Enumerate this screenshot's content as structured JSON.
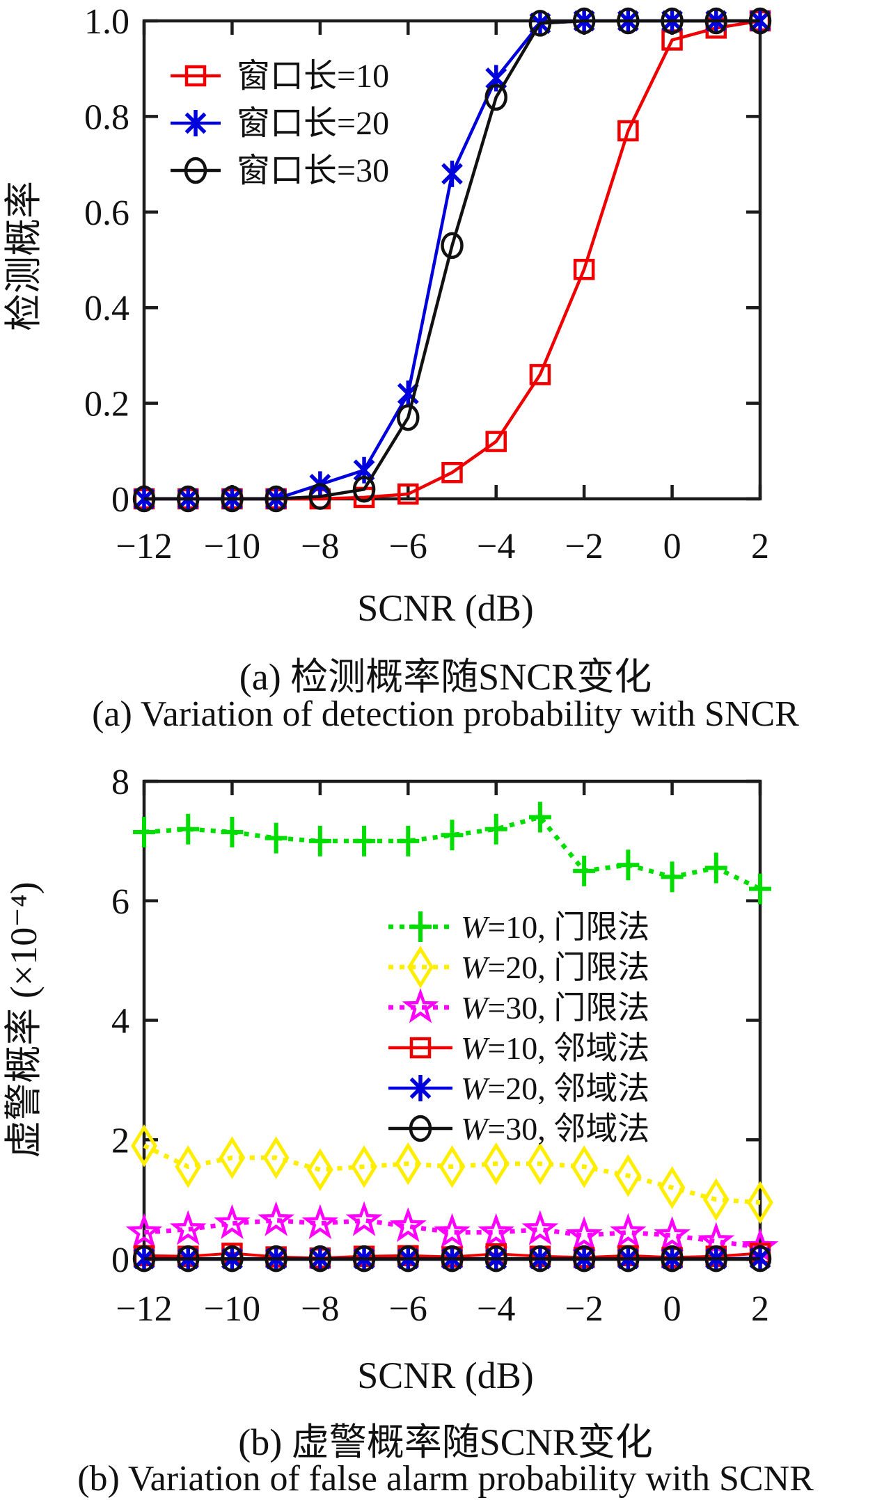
{
  "chart_data": [
    {
      "type": "line",
      "panel": "a",
      "xlabel": "SCNR (dB)",
      "ylabel": "检测概率",
      "caption_zh": "(a) 检测概率随SNCR变化",
      "caption_en": "(a) Variation of detection probability with SNCR",
      "xlim": [
        -12,
        2
      ],
      "ylim": [
        0,
        1
      ],
      "grid": false,
      "legend_position": "top-left",
      "x": [
        -12,
        -11,
        -10,
        -9,
        -8,
        -7,
        -6,
        -5,
        -4,
        -3,
        -2,
        -1,
        0,
        1,
        2
      ],
      "xticks": {
        "values": [
          -12,
          -10,
          -8,
          -6,
          -4,
          -2,
          0,
          2
        ],
        "labels": [
          "−12",
          "−10",
          "−8",
          "−6",
          "−4",
          "−2",
          "0",
          "2"
        ]
      },
      "yticks": {
        "values": [
          0,
          0.2,
          0.4,
          0.6,
          0.8,
          1.0
        ],
        "labels": [
          "0",
          "0.2",
          "0.4",
          "0.6",
          "0.8",
          "1.0"
        ]
      },
      "series": [
        {
          "name": "窗口长=10",
          "color": "#ee0000",
          "marker": "square",
          "line": "solid",
          "values": [
            0,
            0,
            0,
            0,
            0,
            0.003,
            0.01,
            0.055,
            0.12,
            0.26,
            0.48,
            0.77,
            0.96,
            0.985,
            1.0
          ]
        },
        {
          "name": "窗口长=20",
          "color": "#0000dd",
          "marker": "asterisk",
          "line": "solid",
          "values": [
            0,
            0,
            0,
            0,
            0.03,
            0.06,
            0.22,
            0.68,
            0.88,
            0.995,
            1.0,
            1.0,
            1.0,
            1.0,
            1.0
          ]
        },
        {
          "name": "窗口长=30",
          "color": "#111111",
          "marker": "circle",
          "line": "solid",
          "values": [
            0,
            0,
            0,
            0,
            0.005,
            0.02,
            0.17,
            0.53,
            0.84,
            0.995,
            1.0,
            1.0,
            1.0,
            1.0,
            1.0
          ]
        }
      ]
    },
    {
      "type": "line",
      "panel": "b",
      "xlabel": "SCNR (dB)",
      "ylabel": "虚警概率 (×10⁻⁴)",
      "caption_zh": "(b) 虚警概率随SCNR变化",
      "caption_en": "(b) Variation of false alarm probability with SCNR",
      "xlim": [
        -12,
        2
      ],
      "ylim": [
        0,
        8
      ],
      "grid": false,
      "legend_position": "middle-right",
      "x": [
        -12,
        -11,
        -10,
        -9,
        -8,
        -7,
        -6,
        -5,
        -4,
        -3,
        -2,
        -1,
        0,
        1,
        2
      ],
      "xticks": {
        "values": [
          -12,
          -10,
          -8,
          -6,
          -4,
          -2,
          0,
          2
        ],
        "labels": [
          "−12",
          "−10",
          "−8",
          "−6",
          "−4",
          "−2",
          "0",
          "2"
        ]
      },
      "yticks": {
        "values": [
          0,
          2,
          4,
          6,
          8
        ],
        "labels": [
          "0",
          "2",
          "4",
          "6",
          "8"
        ]
      },
      "series": [
        {
          "name": "W=10, 门限法",
          "color": "#00dd00",
          "marker": "plus",
          "line": "dotted",
          "values": [
            7.15,
            7.2,
            7.15,
            7.05,
            7.0,
            7.0,
            7.0,
            7.1,
            7.2,
            7.4,
            6.5,
            6.6,
            6.4,
            6.55,
            6.2
          ]
        },
        {
          "name": "W=20, 门限法",
          "color": "#ffee00",
          "marker": "diamond",
          "line": "dotted",
          "values": [
            1.9,
            1.55,
            1.7,
            1.7,
            1.5,
            1.55,
            1.6,
            1.55,
            1.6,
            1.6,
            1.55,
            1.4,
            1.2,
            1.0,
            0.95
          ]
        },
        {
          "name": "W=30, 门限法",
          "color": "#ff00ff",
          "marker": "star",
          "line": "dotted",
          "values": [
            0.45,
            0.5,
            0.6,
            0.65,
            0.6,
            0.65,
            0.55,
            0.45,
            0.45,
            0.5,
            0.4,
            0.45,
            0.4,
            0.3,
            0.2
          ]
        },
        {
          "name": "W=10, 邻域法",
          "color": "#ee0000",
          "marker": "square",
          "line": "solid",
          "values": [
            0.06,
            0.05,
            0.1,
            0.04,
            0.02,
            0.05,
            0.06,
            0.04,
            0.09,
            0.05,
            0.03,
            0.06,
            0.03,
            0.05,
            0.1
          ]
        },
        {
          "name": "W=20, 邻域法",
          "color": "#0000dd",
          "marker": "asterisk",
          "line": "solid",
          "values": [
            0.01,
            0.01,
            0.01,
            0.01,
            0.01,
            0.01,
            0.01,
            0.01,
            0.01,
            0.01,
            0.01,
            0.01,
            0.01,
            0.01,
            0.02
          ]
        },
        {
          "name": "W=30, 邻域法",
          "color": "#111111",
          "marker": "circle",
          "line": "solid",
          "values": [
            0.01,
            0.01,
            0.01,
            0.01,
            0.01,
            0.01,
            0.01,
            0.01,
            0.01,
            0.01,
            0.01,
            0.01,
            0.01,
            0.01,
            0.01
          ]
        }
      ]
    }
  ]
}
